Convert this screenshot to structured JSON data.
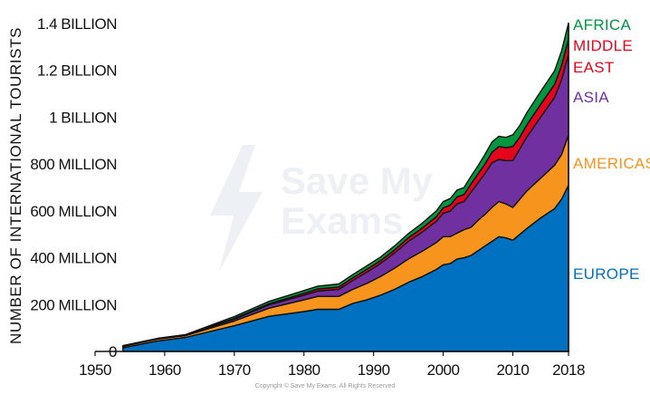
{
  "chart_data": {
    "type": "area",
    "stacked": true,
    "title": "",
    "xlabel": "",
    "ylabel": "NUMBER OF INTERNATIONAL TOURISTS",
    "xlim": [
      1950,
      2018
    ],
    "ylim": [
      0,
      1400
    ],
    "y_unit": "million",
    "grid": false,
    "legend": "inline-right",
    "x_ticks": [
      1950,
      1960,
      1970,
      1980,
      1990,
      2000,
      2010,
      2018
    ],
    "y_ticks": [
      {
        "value": 0,
        "label": "0"
      },
      {
        "value": 200,
        "label": "200 MILLION"
      },
      {
        "value": 400,
        "label": "400 MILLION"
      },
      {
        "value": 600,
        "label": "600 MILLION"
      },
      {
        "value": 800,
        "label": "800 MILLION"
      },
      {
        "value": 1000,
        "label": "1 BILLION"
      },
      {
        "value": 1200,
        "label": "1.2 BILLION"
      },
      {
        "value": 1400,
        "label": "1.4 BILLION"
      }
    ],
    "x": [
      1954,
      1959,
      1963,
      1970,
      1975,
      1980,
      1982,
      1985,
      1987,
      1989,
      1991,
      1993,
      1995,
      1997,
      1999,
      2000,
      2001,
      2002,
      2003,
      2004,
      2005,
      2006,
      2007,
      2008,
      2009,
      2010,
      2011,
      2012,
      2014,
      2016,
      2017,
      2018
    ],
    "series": [
      {
        "name": "EUROPE",
        "color": "#0070c0",
        "values": [
          16,
          45,
          60,
          110,
          150,
          170,
          180,
          180,
          205,
          220,
          240,
          265,
          295,
          320,
          350,
          370,
          375,
          395,
          400,
          410,
          430,
          450,
          470,
          490,
          485,
          475,
          500,
          525,
          570,
          610,
          650,
          710
        ]
      },
      {
        "name": "AMERICAS",
        "color": "#f7941d",
        "values": [
          6,
          8,
          8,
          20,
          35,
          50,
          55,
          55,
          60,
          70,
          80,
          90,
          100,
          108,
          115,
          120,
          115,
          110,
          120,
          120,
          130,
          135,
          145,
          150,
          145,
          140,
          150,
          160,
          170,
          185,
          190,
          215
        ]
      },
      {
        "name": "ASIA",
        "color": "#7030a0",
        "values": [
          1,
          1,
          2,
          8,
          14,
          20,
          23,
          30,
          38,
          48,
          55,
          65,
          75,
          82,
          90,
          100,
          110,
          125,
          120,
          150,
          160,
          175,
          190,
          180,
          185,
          200,
          215,
          230,
          260,
          290,
          320,
          345
        ]
      },
      {
        "name": "MIDDLE EAST",
        "color": "#e3051b",
        "values": [
          1,
          1,
          1,
          3,
          5,
          8,
          9,
          10,
          11,
          12,
          12,
          13,
          15,
          17,
          20,
          23,
          25,
          30,
          30,
          35,
          38,
          40,
          45,
          55,
          55,
          60,
          50,
          52,
          55,
          55,
          60,
          65
        ]
      },
      {
        "name": "AFRICA",
        "color": "#00963f",
        "values": [
          1,
          1,
          1,
          8,
          10,
          12,
          12,
          13,
          14,
          15,
          16,
          17,
          18,
          21,
          25,
          27,
          28,
          29,
          30,
          33,
          35,
          41,
          44,
          44,
          44,
          50,
          50,
          52,
          55,
          58,
          63,
          67
        ]
      }
    ],
    "inline_labels": [
      {
        "lines": [
          "AFRICA"
        ],
        "color": "#00963f"
      },
      {
        "lines": [
          "MIDDLE",
          "EAST"
        ],
        "color": "#e3051b"
      },
      {
        "lines": [
          "ASIA"
        ],
        "color": "#7030a0"
      },
      {
        "lines": [
          "AMERICAS"
        ],
        "color": "#f7941d"
      },
      {
        "lines": [
          "EUROPE"
        ],
        "color": "#0070c0"
      }
    ]
  },
  "watermark": {
    "line1": "Save My",
    "line2": "Exams",
    "copyright": "Copyright © Save My Exams. All Rights Reserved"
  }
}
